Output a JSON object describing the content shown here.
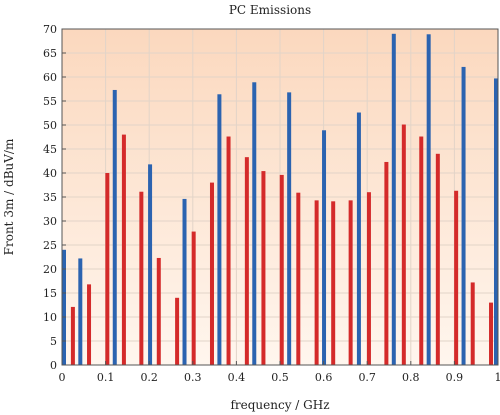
{
  "chart_data": {
    "type": "bar",
    "title": "PC Emissions",
    "xlabel": "frequency /  GHz",
    "ylabel": "Front 3m / dBuV/m",
    "xlim": [
      0,
      1
    ],
    "ylim": [
      0,
      70
    ],
    "xticks": [
      "0",
      "0.1",
      "0.2",
      "0.3",
      "0.4",
      "0.5",
      "0.6",
      "0.7",
      "0.8",
      "0.9",
      "1"
    ],
    "yticks": [
      "0",
      "5",
      "10",
      "15",
      "20",
      "25",
      "30",
      "35",
      "40",
      "45",
      "50",
      "55",
      "60",
      "65",
      "70"
    ],
    "grid": true,
    "background_gradient": [
      "#fff6ee",
      "#fbd8be"
    ],
    "series": [
      {
        "color": "#2b63b0",
        "points": [
          {
            "x": 0.003,
            "y": 24.0
          },
          {
            "x": 0.042,
            "y": 22.2
          },
          {
            "x": 0.121,
            "y": 57.3
          },
          {
            "x": 0.202,
            "y": 41.8
          },
          {
            "x": 0.281,
            "y": 34.6
          },
          {
            "x": 0.361,
            "y": 56.4
          },
          {
            "x": 0.441,
            "y": 58.9
          },
          {
            "x": 0.521,
            "y": 56.8
          },
          {
            "x": 0.601,
            "y": 48.9
          },
          {
            "x": 0.681,
            "y": 52.6
          },
          {
            "x": 0.761,
            "y": 69.0
          },
          {
            "x": 0.841,
            "y": 68.9
          },
          {
            "x": 0.921,
            "y": 62.1
          },
          {
            "x": 0.998,
            "y": 59.7
          }
        ]
      },
      {
        "color": "#d42a2a",
        "points": [
          {
            "x": 0.025,
            "y": 12.1
          },
          {
            "x": 0.062,
            "y": 16.8
          },
          {
            "x": 0.104,
            "y": 40.0
          },
          {
            "x": 0.142,
            "y": 48.0
          },
          {
            "x": 0.182,
            "y": 36.1
          },
          {
            "x": 0.222,
            "y": 22.3
          },
          {
            "x": 0.264,
            "y": 14.0
          },
          {
            "x": 0.302,
            "y": 27.8
          },
          {
            "x": 0.344,
            "y": 38.0
          },
          {
            "x": 0.382,
            "y": 47.6
          },
          {
            "x": 0.424,
            "y": 43.3
          },
          {
            "x": 0.462,
            "y": 40.4
          },
          {
            "x": 0.504,
            "y": 39.6
          },
          {
            "x": 0.542,
            "y": 35.9
          },
          {
            "x": 0.584,
            "y": 34.3
          },
          {
            "x": 0.622,
            "y": 34.1
          },
          {
            "x": 0.662,
            "y": 34.3
          },
          {
            "x": 0.704,
            "y": 36.0
          },
          {
            "x": 0.744,
            "y": 42.3
          },
          {
            "x": 0.784,
            "y": 50.1
          },
          {
            "x": 0.824,
            "y": 47.6
          },
          {
            "x": 0.862,
            "y": 44.0
          },
          {
            "x": 0.904,
            "y": 36.3
          },
          {
            "x": 0.942,
            "y": 17.2
          },
          {
            "x": 0.984,
            "y": 13.0
          }
        ]
      }
    ]
  }
}
